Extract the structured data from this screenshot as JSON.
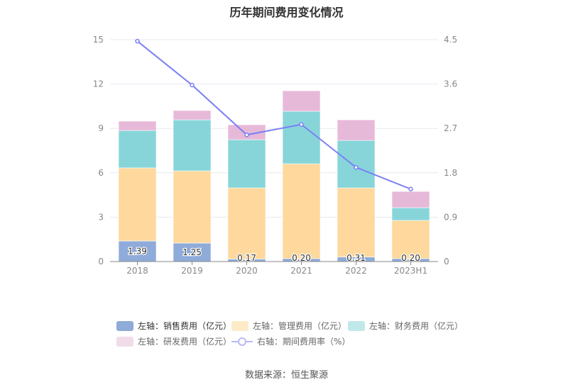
{
  "chart_data": {
    "type": "bar",
    "stacked": true,
    "title": "历年期间费用变化情况",
    "categories": [
      "2018",
      "2019",
      "2020",
      "2021",
      "2022",
      "2023H1"
    ],
    "left_axis": {
      "ticks": [
        "0",
        "3",
        "6",
        "9",
        "12",
        "15"
      ],
      "range": [
        0,
        15
      ]
    },
    "right_axis": {
      "ticks": [
        "0",
        "0.9",
        "1.8",
        "2.7",
        "3.6",
        "4.5"
      ],
      "range": [
        0,
        4.5
      ]
    },
    "series": [
      {
        "name": "左轴：销售费用（亿元）",
        "type": "bar",
        "color": "#8eabd9",
        "values": [
          1.39,
          1.25,
          0.17,
          0.2,
          0.31,
          0.2
        ],
        "labels": [
          "1.39",
          "1.25",
          "0.17",
          "0.20",
          "0.31",
          "0.20"
        ]
      },
      {
        "name": "左轴：管理费用（亿元）",
        "type": "bar",
        "color": "#fed89c",
        "values": [
          4.94,
          4.88,
          4.81,
          6.41,
          4.67,
          2.58
        ]
      },
      {
        "name": "左轴：财务费用（亿元）",
        "type": "bar",
        "color": "#87d5d9",
        "values": [
          2.53,
          3.45,
          3.26,
          3.55,
          3.21,
          0.86
        ]
      },
      {
        "name": "左轴：研发费用（亿元）",
        "type": "bar",
        "color": "#e7b9d9",
        "values": [
          0.63,
          0.63,
          1.01,
          1.39,
          1.39,
          1.1
        ]
      },
      {
        "name": "右轴：期间费用率（%）",
        "type": "line",
        "axis": "right",
        "color": "#7b7ff5",
        "values": [
          4.47,
          3.58,
          2.57,
          2.78,
          1.91,
          1.47
        ]
      }
    ],
    "legend_position": "bottom",
    "grid": true
  },
  "source": "数据来源：恒生聚源"
}
